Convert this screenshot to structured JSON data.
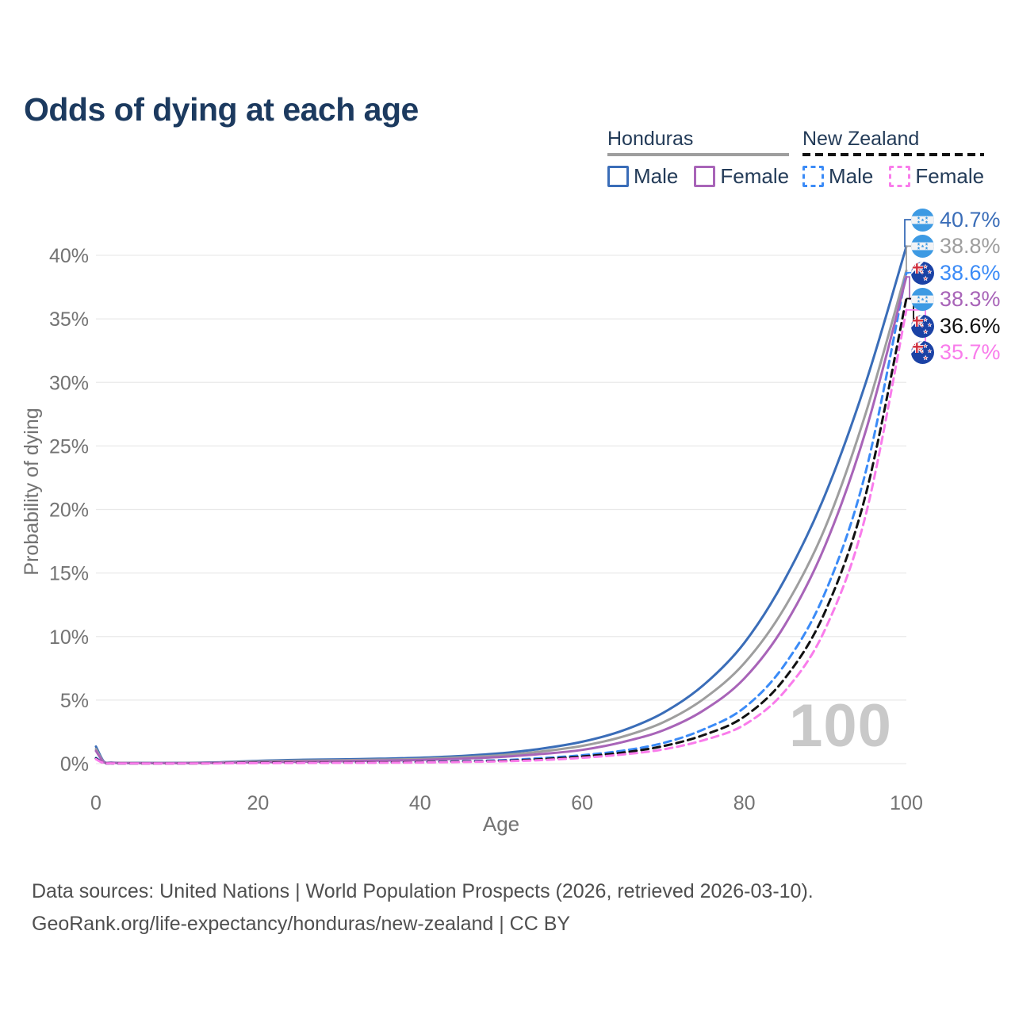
{
  "title": "Odds of dying at each age",
  "legend": {
    "groups": [
      {
        "country": "Honduras",
        "line_style": "solid",
        "underline_color": "#9e9e9e",
        "items": [
          {
            "label": "Male",
            "color": "#3a6db8",
            "dash": false
          },
          {
            "label": "Female",
            "color": "#a864b8",
            "dash": false
          }
        ]
      },
      {
        "country": "New Zealand",
        "line_style": "dashed",
        "underline_color": "#111111",
        "items": [
          {
            "label": "Male",
            "color": "#3b8bf7",
            "dash": true
          },
          {
            "label": "Female",
            "color": "#f97ceb",
            "dash": true
          }
        ]
      }
    ]
  },
  "chart_data": {
    "type": "line",
    "title": "Odds of dying at each age",
    "xlabel": "Age",
    "ylabel": "Probability of dying",
    "xlim": [
      0,
      100
    ],
    "ylim_percent": [
      0,
      43
    ],
    "x_ticks": [
      0,
      20,
      40,
      60,
      80,
      100
    ],
    "x_tick_labels": [
      "0",
      "20",
      "40",
      "60",
      "80",
      "100"
    ],
    "y_ticks_percent": [
      0,
      5,
      10,
      15,
      20,
      25,
      30,
      35,
      40
    ],
    "y_tick_labels": [
      "0%",
      "5%",
      "10%",
      "15%",
      "20%",
      "25%",
      "30%",
      "35%",
      "40%"
    ],
    "grid": "horizontal",
    "legend_position": "top-right",
    "watermark": "100",
    "ages": [
      0,
      1,
      2,
      5,
      10,
      15,
      20,
      25,
      30,
      35,
      40,
      45,
      50,
      55,
      60,
      65,
      70,
      75,
      80,
      85,
      90,
      95,
      100
    ],
    "series": [
      {
        "name": "Honduras Male",
        "country": "honduras",
        "sex": "male",
        "color": "#3a6db8",
        "dash": false,
        "end_label": "40.7%",
        "values_percent": [
          1.35,
          0.15,
          0.08,
          0.06,
          0.06,
          0.1,
          0.22,
          0.3,
          0.34,
          0.39,
          0.46,
          0.6,
          0.82,
          1.18,
          1.72,
          2.6,
          4.0,
          6.2,
          9.5,
          14.5,
          21.2,
          30.0,
          40.7
        ]
      },
      {
        "name": "Honduras Both sexes",
        "country": "honduras",
        "sex": "both",
        "color": "#9e9e9e",
        "dash": false,
        "end_label": "38.8%",
        "values_percent": [
          1.15,
          0.12,
          0.07,
          0.05,
          0.05,
          0.08,
          0.17,
          0.23,
          0.27,
          0.31,
          0.37,
          0.49,
          0.66,
          0.96,
          1.4,
          2.12,
          3.25,
          5.1,
          7.9,
          12.3,
          18.6,
          27.6,
          38.8
        ]
      },
      {
        "name": "New Zealand Male",
        "country": "new-zealand",
        "sex": "male",
        "color": "#3b8bf7",
        "dash": true,
        "end_label": "38.6%",
        "values_percent": [
          0.45,
          0.04,
          0.02,
          0.02,
          0.02,
          0.04,
          0.08,
          0.09,
          0.1,
          0.11,
          0.14,
          0.19,
          0.27,
          0.43,
          0.66,
          1.02,
          1.62,
          2.7,
          4.4,
          7.8,
          13.5,
          23.0,
          38.6
        ]
      },
      {
        "name": "Honduras Female",
        "country": "honduras",
        "sex": "female",
        "color": "#a864b8",
        "dash": false,
        "end_label": "38.3%",
        "values_percent": [
          1.0,
          0.1,
          0.06,
          0.04,
          0.04,
          0.06,
          0.11,
          0.15,
          0.19,
          0.23,
          0.29,
          0.39,
          0.53,
          0.76,
          1.08,
          1.7,
          2.62,
          4.2,
          6.7,
          10.9,
          17.2,
          26.2,
          38.3
        ]
      },
      {
        "name": "New Zealand Both sexes",
        "country": "new-zealand",
        "sex": "both",
        "color": "#111111",
        "dash": true,
        "end_label": "36.6%",
        "values_percent": [
          0.4,
          0.03,
          0.02,
          0.01,
          0.01,
          0.03,
          0.06,
          0.07,
          0.08,
          0.09,
          0.11,
          0.16,
          0.22,
          0.35,
          0.56,
          0.87,
          1.38,
          2.25,
          3.7,
          6.7,
          12.0,
          21.2,
          36.6
        ]
      },
      {
        "name": "New Zealand Female",
        "country": "new-zealand",
        "sex": "female",
        "color": "#f97ceb",
        "dash": true,
        "end_label": "35.7%",
        "values_percent": [
          0.35,
          0.03,
          0.02,
          0.01,
          0.01,
          0.02,
          0.04,
          0.05,
          0.06,
          0.07,
          0.09,
          0.13,
          0.18,
          0.28,
          0.46,
          0.72,
          1.12,
          1.85,
          3.05,
          5.7,
          10.6,
          19.6,
          35.7
        ]
      }
    ]
  },
  "footer": {
    "line1": "Data sources: United Nations | World Population Prospects (2026, retrieved 2026-03-10).",
    "line2": "GeoRank.org/life-expectancy/honduras/new-zealand | CC BY"
  }
}
